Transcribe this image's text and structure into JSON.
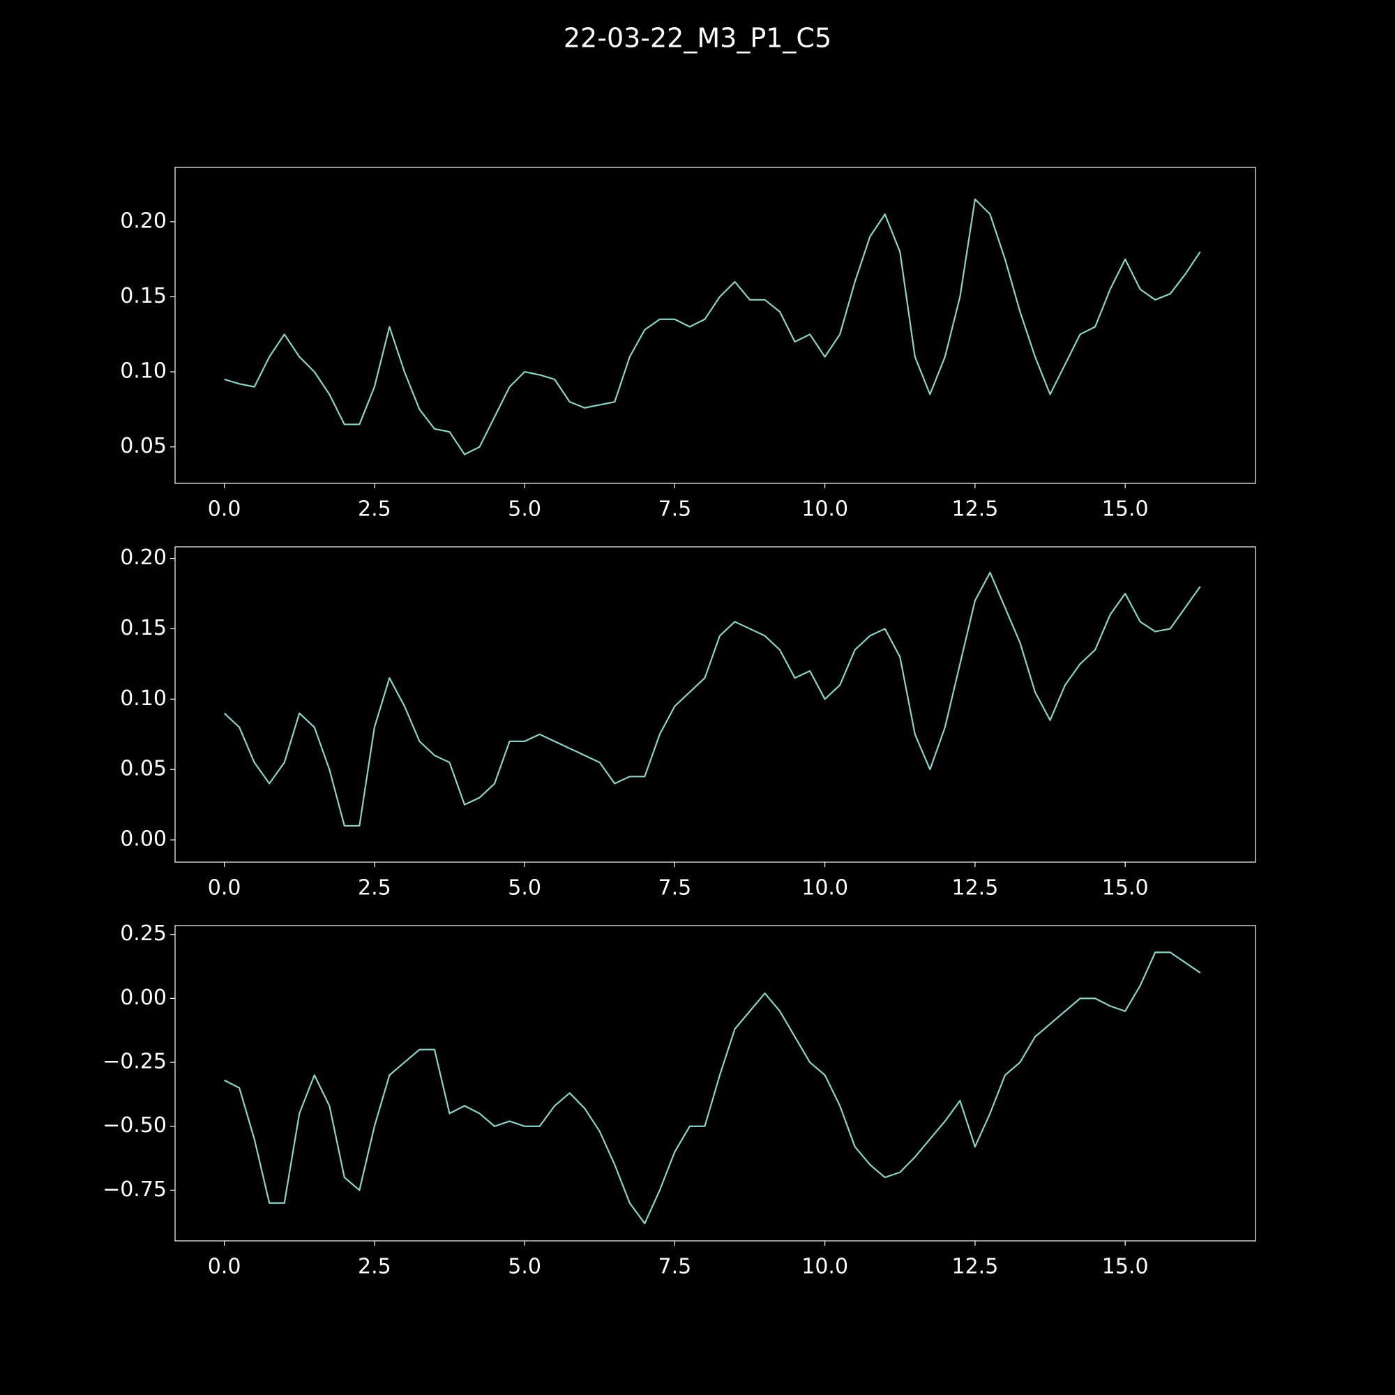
{
  "title": "22-03-22_M3_P1_C5",
  "chart_data": [
    {
      "type": "line",
      "color": "#8dd3c7",
      "xlim": [
        -0.82,
        17.17
      ],
      "ylim": [
        0.0257,
        0.2362
      ],
      "xticks": [
        {
          "value": 0,
          "label": "0.0"
        },
        2.5,
        {
          "value": 5,
          "label": "5.0"
        },
        7.5,
        {
          "value": 10,
          "label": "10.0"
        },
        12.5,
        {
          "value": 15,
          "label": "15.0"
        }
      ],
      "yticks": [
        0.05,
        {
          "value": 0.1,
          "label": "0.10"
        },
        0.15,
        {
          "value": 0.2,
          "label": "0.20"
        }
      ],
      "x": [
        0,
        0.25,
        0.5,
        0.75,
        1,
        1.25,
        1.5,
        1.75,
        2,
        2.25,
        2.5,
        2.75,
        3,
        3.25,
        3.5,
        3.75,
        4,
        4.25,
        4.5,
        4.75,
        5,
        5.25,
        5.5,
        5.75,
        6,
        6.25,
        6.5,
        6.75,
        7,
        7.25,
        7.5,
        7.75,
        8,
        8.25,
        8.5,
        8.75,
        9,
        9.25,
        9.5,
        9.75,
        10,
        10.25,
        10.5,
        10.75,
        11,
        11.25,
        11.5,
        11.75,
        12,
        12.25,
        12.5,
        12.75,
        13,
        13.25,
        13.5,
        13.75,
        14,
        14.25,
        14.5,
        14.75,
        15,
        15.25,
        15.5,
        15.75,
        16,
        16.25
      ],
      "values": [
        0.095,
        0.092,
        0.09,
        0.11,
        0.125,
        0.11,
        0.1,
        0.085,
        0.065,
        0.065,
        0.09,
        0.13,
        0.1,
        0.075,
        0.062,
        0.06,
        0.045,
        0.05,
        0.07,
        0.09,
        0.1,
        0.098,
        0.095,
        0.08,
        0.076,
        0.078,
        0.08,
        0.11,
        0.128,
        0.135,
        0.135,
        0.13,
        0.135,
        0.15,
        0.16,
        0.148,
        0.148,
        0.14,
        0.12,
        0.125,
        0.11,
        0.125,
        0.16,
        0.19,
        0.205,
        0.18,
        0.11,
        0.085,
        0.11,
        0.15,
        0.215,
        0.205,
        0.175,
        0.14,
        0.11,
        0.085,
        0.105,
        0.125,
        0.13,
        0.155,
        0.175,
        0.155,
        0.148,
        0.152,
        0.165,
        0.18
      ]
    },
    {
      "type": "line",
      "color": "#8dd3c7",
      "xlim": [
        -0.82,
        17.17
      ],
      "ylim": [
        -0.0158,
        0.2082
      ],
      "xticks": [
        {
          "value": 0,
          "label": "0.0"
        },
        2.5,
        {
          "value": 5,
          "label": "5.0"
        },
        7.5,
        {
          "value": 10,
          "label": "10.0"
        },
        12.5,
        {
          "value": 15,
          "label": "15.0"
        }
      ],
      "yticks": [
        {
          "value": 0,
          "label": "0.00"
        },
        0.05,
        {
          "value": 0.1,
          "label": "0.10"
        },
        0.15,
        {
          "value": 0.2,
          "label": "0.20"
        }
      ],
      "x": [
        0,
        0.25,
        0.5,
        0.75,
        1,
        1.25,
        1.5,
        1.75,
        2,
        2.25,
        2.5,
        2.75,
        3,
        3.25,
        3.5,
        3.75,
        4,
        4.25,
        4.5,
        4.75,
        5,
        5.25,
        5.5,
        5.75,
        6,
        6.25,
        6.5,
        6.75,
        7,
        7.25,
        7.5,
        7.75,
        8,
        8.25,
        8.5,
        8.75,
        9,
        9.25,
        9.5,
        9.75,
        10,
        10.25,
        10.5,
        10.75,
        11,
        11.25,
        11.5,
        11.75,
        12,
        12.25,
        12.5,
        12.75,
        13,
        13.25,
        13.5,
        13.75,
        14,
        14.25,
        14.5,
        14.75,
        15,
        15.25,
        15.5,
        15.75,
        16,
        16.25
      ],
      "values": [
        0.09,
        0.08,
        0.055,
        0.04,
        0.055,
        0.09,
        0.08,
        0.05,
        0.01,
        0.01,
        0.08,
        0.115,
        0.095,
        0.07,
        0.06,
        0.055,
        0.025,
        0.03,
        0.04,
        0.07,
        0.07,
        0.075,
        0.07,
        0.065,
        0.06,
        0.055,
        0.04,
        0.045,
        0.045,
        0.075,
        0.095,
        0.105,
        0.115,
        0.145,
        0.155,
        0.15,
        0.145,
        0.135,
        0.115,
        0.12,
        0.1,
        0.11,
        0.135,
        0.145,
        0.15,
        0.13,
        0.075,
        0.05,
        0.08,
        0.125,
        0.17,
        0.19,
        0.165,
        0.14,
        0.105,
        0.085,
        0.11,
        0.125,
        0.135,
        0.16,
        0.175,
        0.155,
        0.148,
        0.15,
        0.165,
        0.18
      ]
    },
    {
      "type": "line",
      "color": "#8dd3c7",
      "xlim": [
        -0.82,
        17.17
      ],
      "ylim": [
        -0.948,
        0.2847
      ],
      "xticks": [
        {
          "value": 0,
          "label": "0.0"
        },
        2.5,
        {
          "value": 5,
          "label": "5.0"
        },
        7.5,
        {
          "value": 10,
          "label": "10.0"
        },
        12.5,
        {
          "value": 15,
          "label": "15.0"
        }
      ],
      "yticks": [
        {
          "value": -0.75,
          "label": "−0.75"
        },
        {
          "value": -0.5,
          "label": "−0.50"
        },
        {
          "value": -0.25,
          "label": "−0.25"
        },
        {
          "value": 0,
          "label": "0.00"
        },
        0.25
      ],
      "x": [
        0,
        0.25,
        0.5,
        0.75,
        1,
        1.25,
        1.5,
        1.75,
        2,
        2.25,
        2.5,
        2.75,
        3,
        3.25,
        3.5,
        3.75,
        4,
        4.25,
        4.5,
        4.75,
        5,
        5.25,
        5.5,
        5.75,
        6,
        6.25,
        6.5,
        6.75,
        7,
        7.25,
        7.5,
        7.75,
        8,
        8.25,
        8.5,
        8.75,
        9,
        9.25,
        9.5,
        9.75,
        10,
        10.25,
        10.5,
        10.75,
        11,
        11.25,
        11.5,
        11.75,
        12,
        12.25,
        12.5,
        12.75,
        13,
        13.25,
        13.5,
        13.75,
        14,
        14.25,
        14.5,
        14.75,
        15,
        15.25,
        15.5,
        15.75,
        16,
        16.25
      ],
      "values": [
        -0.32,
        -0.35,
        -0.55,
        -0.8,
        -0.8,
        -0.45,
        -0.3,
        -0.42,
        -0.7,
        -0.75,
        -0.5,
        -0.3,
        -0.25,
        -0.2,
        -0.2,
        -0.45,
        -0.42,
        -0.45,
        -0.5,
        -0.48,
        -0.5,
        -0.5,
        -0.42,
        -0.37,
        -0.43,
        -0.52,
        -0.65,
        -0.8,
        -0.88,
        -0.75,
        -0.6,
        -0.5,
        -0.5,
        -0.3,
        -0.12,
        -0.05,
        0.02,
        -0.05,
        -0.15,
        -0.25,
        -0.3,
        -0.42,
        -0.58,
        -0.65,
        -0.7,
        -0.68,
        -0.62,
        -0.55,
        -0.48,
        -0.4,
        -0.58,
        -0.45,
        -0.3,
        -0.25,
        -0.15,
        -0.1,
        -0.05,
        0,
        0,
        -0.03,
        -0.05,
        0.05,
        0.18,
        0.18,
        0.14,
        0.1
      ]
    }
  ]
}
